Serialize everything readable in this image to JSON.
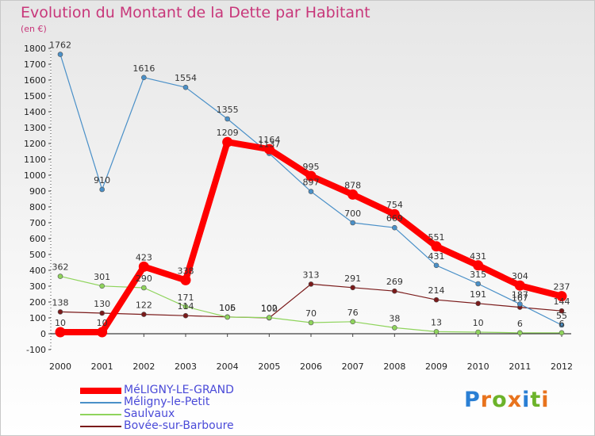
{
  "title": "Evolution du Montant de la Dette par Habitant",
  "subtitle": "(en €)",
  "brand": {
    "text": "Proxiti",
    "letter_colors": [
      "#2a7fd4",
      "#e8731d",
      "#6cb32a",
      "#e8731d",
      "#2a7fd4",
      "#6cb32a",
      "#e8731d"
    ]
  },
  "chart_data": {
    "type": "line",
    "title": "Evolution du Montant de la Dette par Habitant",
    "subtitle": "(en €)",
    "x": [
      "2000",
      "2001",
      "2002",
      "2003",
      "2004",
      "2005",
      "2006",
      "2007",
      "2008",
      "2009",
      "2010",
      "2011",
      "2012"
    ],
    "ylim": [
      -100,
      1800
    ],
    "yticks": [
      "-100",
      "0",
      "100",
      "200",
      "300",
      "400",
      "500",
      "600",
      "700",
      "800",
      "900",
      "1000",
      "1100",
      "1200",
      "1300",
      "1400",
      "1500",
      "1600",
      "1700",
      "1800"
    ],
    "grid": false,
    "legend_position": "bottom-left",
    "series": [
      {
        "name": "MéLIGNY-LE-GRAND",
        "color": "#ff0000",
        "values": [
          10,
          10,
          423,
          338,
          1209,
          1164,
          995,
          878,
          754,
          551,
          431,
          304,
          237
        ],
        "labels": [
          "10",
          "10",
          "423",
          "338",
          "1209",
          "1164",
          "995",
          "878",
          "754",
          "551",
          "431",
          "304",
          "237"
        ]
      },
      {
        "name": "Méligny-le-Petit",
        "color": "#4a90c8",
        "values": [
          1762,
          910,
          1616,
          1554,
          1355,
          1137,
          897,
          700,
          669,
          431,
          315,
          187,
          55
        ],
        "labels": [
          "1762",
          "910",
          "1616",
          "1554",
          "1355",
          "1137",
          "897",
          "700",
          "669",
          "431",
          "315",
          "187",
          "55"
        ]
      },
      {
        "name": "Saulvaux",
        "color": "#8fd45c",
        "values": [
          362,
          301,
          290,
          171,
          105,
          102,
          70,
          76,
          38,
          13,
          10,
          6,
          6
        ],
        "labels": [
          "362",
          "301",
          "290",
          "171",
          "105",
          "102",
          "70",
          "76",
          "38",
          "13",
          "10",
          "6",
          "6"
        ]
      },
      {
        "name": "Bovée-sur-Barboure",
        "color": "#7a1a1a",
        "values": [
          138,
          130,
          122,
          114,
          106,
          100,
          313,
          291,
          269,
          214,
          191,
          167,
          144
        ],
        "labels": [
          "138",
          "130",
          "122",
          "114",
          "106",
          "100",
          "313",
          "291",
          "269",
          "214",
          "191",
          "167",
          "144"
        ]
      }
    ]
  }
}
